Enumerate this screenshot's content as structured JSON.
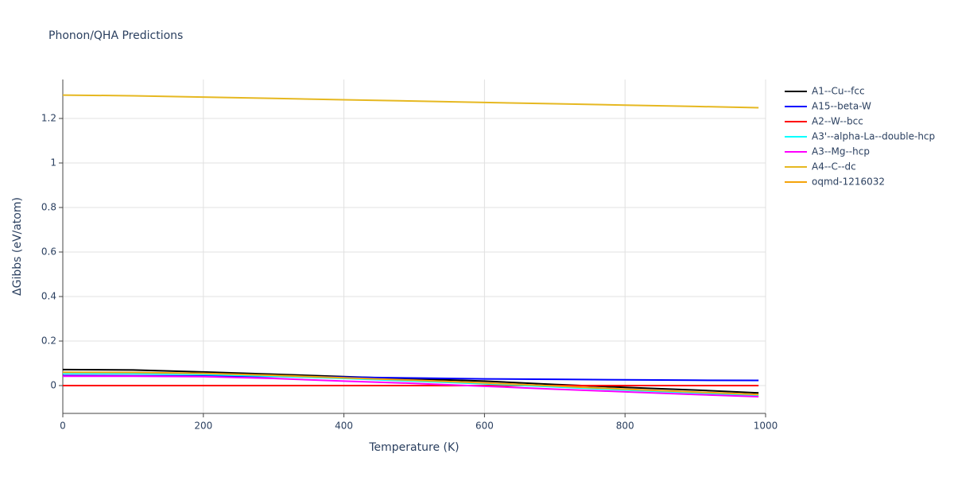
{
  "chart_data": {
    "type": "line",
    "title": "Phonon/QHA Predictions",
    "x_label": "Temperature (K)",
    "y_label": "ΔGibbs (eV/atom)",
    "x": [
      0,
      100,
      200,
      300,
      400,
      500,
      600,
      700,
      800,
      900,
      990
    ],
    "xlim": [
      0,
      1000
    ],
    "xticks": [
      0,
      200,
      400,
      600,
      800,
      1000
    ],
    "ylim": [
      -0.125,
      1.375
    ],
    "yticks": [
      0,
      0.2,
      0.4,
      0.6,
      0.8,
      1,
      1.2
    ],
    "grid": true,
    "legend": "right",
    "series": [
      {
        "name": "A1--Cu--fcc",
        "color": "#000000",
        "values": [
          0.072,
          0.07,
          0.061,
          0.051,
          0.04,
          0.03,
          0.02,
          0.005,
          -0.008,
          -0.02,
          -0.033
        ]
      },
      {
        "name": "A15--beta-W",
        "color": "#0000ff",
        "values": [
          0.045,
          0.044,
          0.043,
          0.041,
          0.038,
          0.034,
          0.03,
          0.028,
          0.026,
          0.024,
          0.023
        ]
      },
      {
        "name": "A2--W--bcc",
        "color": "#ff0000",
        "values": [
          0,
          0,
          0,
          0,
          0,
          0,
          0,
          0,
          0,
          0,
          0
        ]
      },
      {
        "name": "A3'--alpha-La--double-hcp",
        "color": "#00ffff",
        "values": [
          0.055,
          0.054,
          0.05,
          0.042,
          0.032,
          0.02,
          0.008,
          -0.006,
          -0.02,
          -0.033,
          -0.045
        ]
      },
      {
        "name": "A3--Mg--hcp",
        "color": "#ff00ff",
        "values": [
          0.042,
          0.042,
          0.04,
          0.032,
          0.02,
          0.01,
          -0.003,
          -0.016,
          -0.028,
          -0.04,
          -0.05
        ]
      },
      {
        "name": "A4--C--dc",
        "color": "#e6b821",
        "values": [
          1.305,
          1.302,
          1.296,
          1.29,
          1.284,
          1.278,
          1.272,
          1.266,
          1.26,
          1.254,
          1.248
        ]
      },
      {
        "name": "oqmd-1216032",
        "color": "#f5a30a",
        "values": [
          0.06,
          0.059,
          0.055,
          0.046,
          0.035,
          0.024,
          0.012,
          -0.002,
          -0.016,
          -0.029,
          -0.04
        ]
      }
    ]
  }
}
